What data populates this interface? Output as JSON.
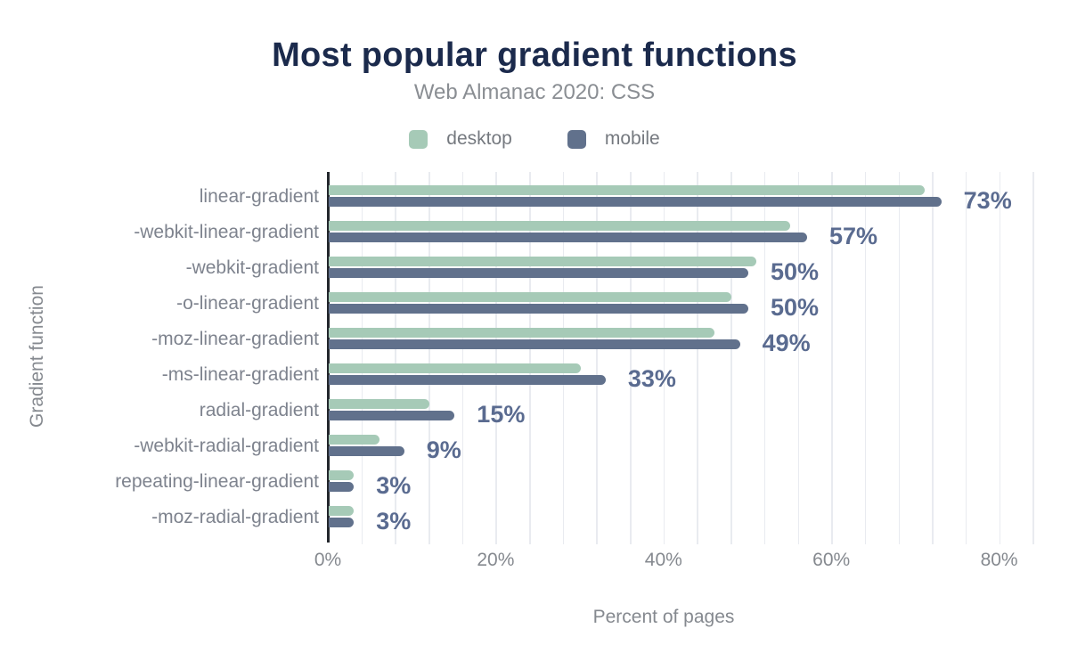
{
  "chart_data": {
    "type": "bar",
    "orientation": "horizontal",
    "title": "Most popular gradient functions",
    "subtitle": "Web Almanac 2020: CSS",
    "xlabel": "Percent of pages",
    "ylabel": "Gradient function",
    "categories": [
      "linear-gradient",
      "-webkit-linear-gradient",
      "-webkit-gradient",
      "-o-linear-gradient",
      "-moz-linear-gradient",
      "-ms-linear-gradient",
      "radial-gradient",
      "-webkit-radial-gradient",
      "repeating-linear-gradient",
      "-moz-radial-gradient"
    ],
    "series": [
      {
        "name": "desktop",
        "color": "#a6cab7",
        "values": [
          71,
          55,
          51,
          48,
          46,
          30,
          12,
          6,
          3,
          3
        ]
      },
      {
        "name": "mobile",
        "color": "#61718c",
        "values": [
          73,
          57,
          50,
          50,
          49,
          33,
          15,
          9,
          3,
          3
        ]
      }
    ],
    "data_labels": [
      "73%",
      "57%",
      "50%",
      "50%",
      "49%",
      "33%",
      "15%",
      "9%",
      "3%",
      "3%"
    ],
    "data_label_series": "mobile",
    "x_ticks": [
      {
        "label": "0%",
        "value": 0
      },
      {
        "label": "20%",
        "value": 20
      },
      {
        "label": "40%",
        "value": 40
      },
      {
        "label": "60%",
        "value": 60
      },
      {
        "label": "80%",
        "value": 80
      }
    ],
    "xlim": [
      0,
      84
    ],
    "grid_minor_step": 4,
    "grid": "vertical minor gridlines",
    "legend_position": "top-center"
  },
  "colors": {
    "title": "#1b2a4c",
    "subtitle": "#8a8e93",
    "legend_text": "#75797f",
    "category_label": "#7e838e",
    "tick_label": "#85898f",
    "axis_title": "#85898f",
    "value_label": "#5a6b90",
    "gridline": "#e9ebf0",
    "axis_line": "#23272d",
    "background": "#ffffff"
  }
}
